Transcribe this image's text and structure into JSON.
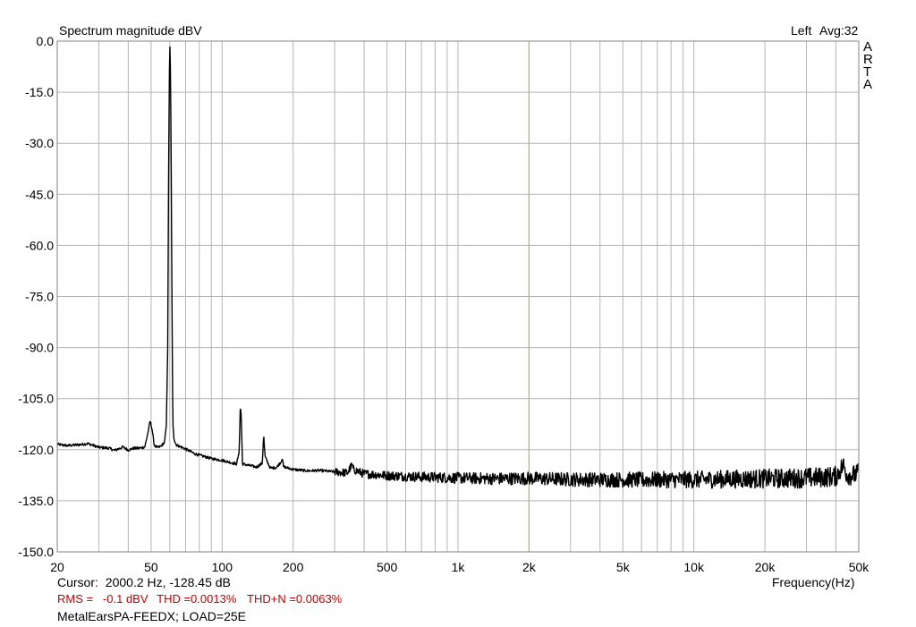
{
  "header": {
    "title": "Spectrum magnitude dBV",
    "channel": "Left",
    "averaging": "Avg:32"
  },
  "brand": [
    "A",
    "R",
    "T",
    "A"
  ],
  "chart_data": {
    "type": "line",
    "title": "Spectrum magnitude dBV",
    "xlabel": "Frequency(Hz)",
    "ylabel": "",
    "xscale": "log",
    "xlim": [
      20,
      50000
    ],
    "ylim": [
      -150,
      0
    ],
    "grid": true,
    "y_ticks": [
      "0.0",
      "-15.0",
      "-30.0",
      "-45.0",
      "-60.0",
      "-75.0",
      "-90.0",
      "-105.0",
      "-120.0",
      "-135.0",
      "-150.0"
    ],
    "y_tick_values": [
      0,
      -15,
      -30,
      -45,
      -60,
      -75,
      -90,
      -105,
      -120,
      -135,
      -150
    ],
    "x_ticks": [
      {
        "label": "20",
        "value": 20
      },
      {
        "label": "50",
        "value": 50
      },
      {
        "label": "100",
        "value": 100
      },
      {
        "label": "200",
        "value": 200
      },
      {
        "label": "500",
        "value": 500
      },
      {
        "label": "1k",
        "value": 1000
      },
      {
        "label": "2k",
        "value": 2000
      },
      {
        "label": "5k",
        "value": 5000
      },
      {
        "label": "10k",
        "value": 10000
      },
      {
        "label": "20k",
        "value": 20000
      },
      {
        "label": "50k",
        "value": 50000
      }
    ],
    "cursor_frequency": 2000,
    "series": [
      {
        "color": "#000000",
        "points": [
          [
            20,
            -118.4
          ],
          [
            22,
            -118.8
          ],
          [
            25,
            -118.5
          ],
          [
            27,
            -118.2
          ],
          [
            30,
            -119.3
          ],
          [
            33,
            -119.5
          ],
          [
            35,
            -120.2
          ],
          [
            38,
            -119.2
          ],
          [
            40,
            -120.1
          ],
          [
            42,
            -119.6
          ],
          [
            45,
            -119.5
          ],
          [
            47,
            -119.2
          ],
          [
            48.5,
            -115
          ],
          [
            49.5,
            -111.5
          ],
          [
            50.5,
            -114
          ],
          [
            51.5,
            -118.6
          ],
          [
            53,
            -119.4
          ],
          [
            55,
            -119.0
          ],
          [
            57,
            -117.8
          ],
          [
            58,
            -113
          ],
          [
            58.8,
            -90
          ],
          [
            59.3,
            -40
          ],
          [
            59.7,
            -12
          ],
          [
            60,
            -0.5
          ],
          [
            60.3,
            -6
          ],
          [
            60.7,
            -25
          ],
          [
            61.2,
            -70
          ],
          [
            61.8,
            -112
          ],
          [
            62.5,
            -117
          ],
          [
            64,
            -118.6
          ],
          [
            68,
            -119.4
          ],
          [
            72,
            -120.2
          ],
          [
            76,
            -121.1
          ],
          [
            80,
            -121.6
          ],
          [
            85,
            -122.1
          ],
          [
            90,
            -122.6
          ],
          [
            100,
            -123.1
          ],
          [
            108,
            -123.7
          ],
          [
            115,
            -124.2
          ],
          [
            118,
            -121
          ],
          [
            119.5,
            -107
          ],
          [
            120.5,
            -110
          ],
          [
            122,
            -124.2
          ],
          [
            130,
            -124.6
          ],
          [
            140,
            -125.1
          ],
          [
            148,
            -124
          ],
          [
            150,
            -115.5
          ],
          [
            152,
            -122
          ],
          [
            160,
            -125.4
          ],
          [
            170,
            -125.2
          ],
          [
            178,
            -123.5
          ],
          [
            180,
            -122.3
          ],
          [
            182,
            -125
          ],
          [
            200,
            -125.8
          ],
          [
            230,
            -126.2
          ],
          [
            260,
            -126.1
          ],
          [
            300,
            -126.5
          ],
          [
            340,
            -126.8
          ],
          [
            355,
            -124.5
          ],
          [
            360,
            -125.8
          ],
          [
            400,
            -127.1
          ],
          [
            450,
            -127.3
          ],
          [
            500,
            -127.6
          ],
          [
            600,
            -127.8
          ],
          [
            700,
            -128.0
          ],
          [
            800,
            -128.1
          ],
          [
            900,
            -128.2
          ],
          [
            1000,
            -128.3
          ],
          [
            1200,
            -128.4
          ],
          [
            1500,
            -128.5
          ],
          [
            2000,
            -128.4
          ],
          [
            2500,
            -128.6
          ],
          [
            3000,
            -128.7
          ],
          [
            4000,
            -128.8
          ],
          [
            5000,
            -128.8
          ],
          [
            6000,
            -128.9
          ],
          [
            7000,
            -128.8
          ],
          [
            8000,
            -128.8
          ],
          [
            10000,
            -128.8
          ],
          [
            12000,
            -128.7
          ],
          [
            15000,
            -128.6
          ],
          [
            20000,
            -128.5
          ],
          [
            25000,
            -128.4
          ],
          [
            30000,
            -128.3
          ],
          [
            35000,
            -128.1
          ],
          [
            40000,
            -127.8
          ],
          [
            43000,
            -124.5
          ],
          [
            44500,
            -127.2
          ],
          [
            47000,
            -127.6
          ],
          [
            50000,
            -127.0
          ]
        ]
      }
    ]
  },
  "footer": {
    "cursor_label": "Cursor:",
    "cursor_value": "2000.2 Hz, -128.45 dB",
    "rms": "RMS =   -0.1 dBV",
    "thd": "THD =0.0013%",
    "thdn": "THD+N =0.0063%",
    "note": "MetalEarsPA-FEEDX; LOAD=25E"
  },
  "colors": {
    "background": "#ffffff",
    "grid": "#b4b4b4",
    "trace": "#000000",
    "cursor": "#c8b400",
    "stats": "#c00000"
  }
}
